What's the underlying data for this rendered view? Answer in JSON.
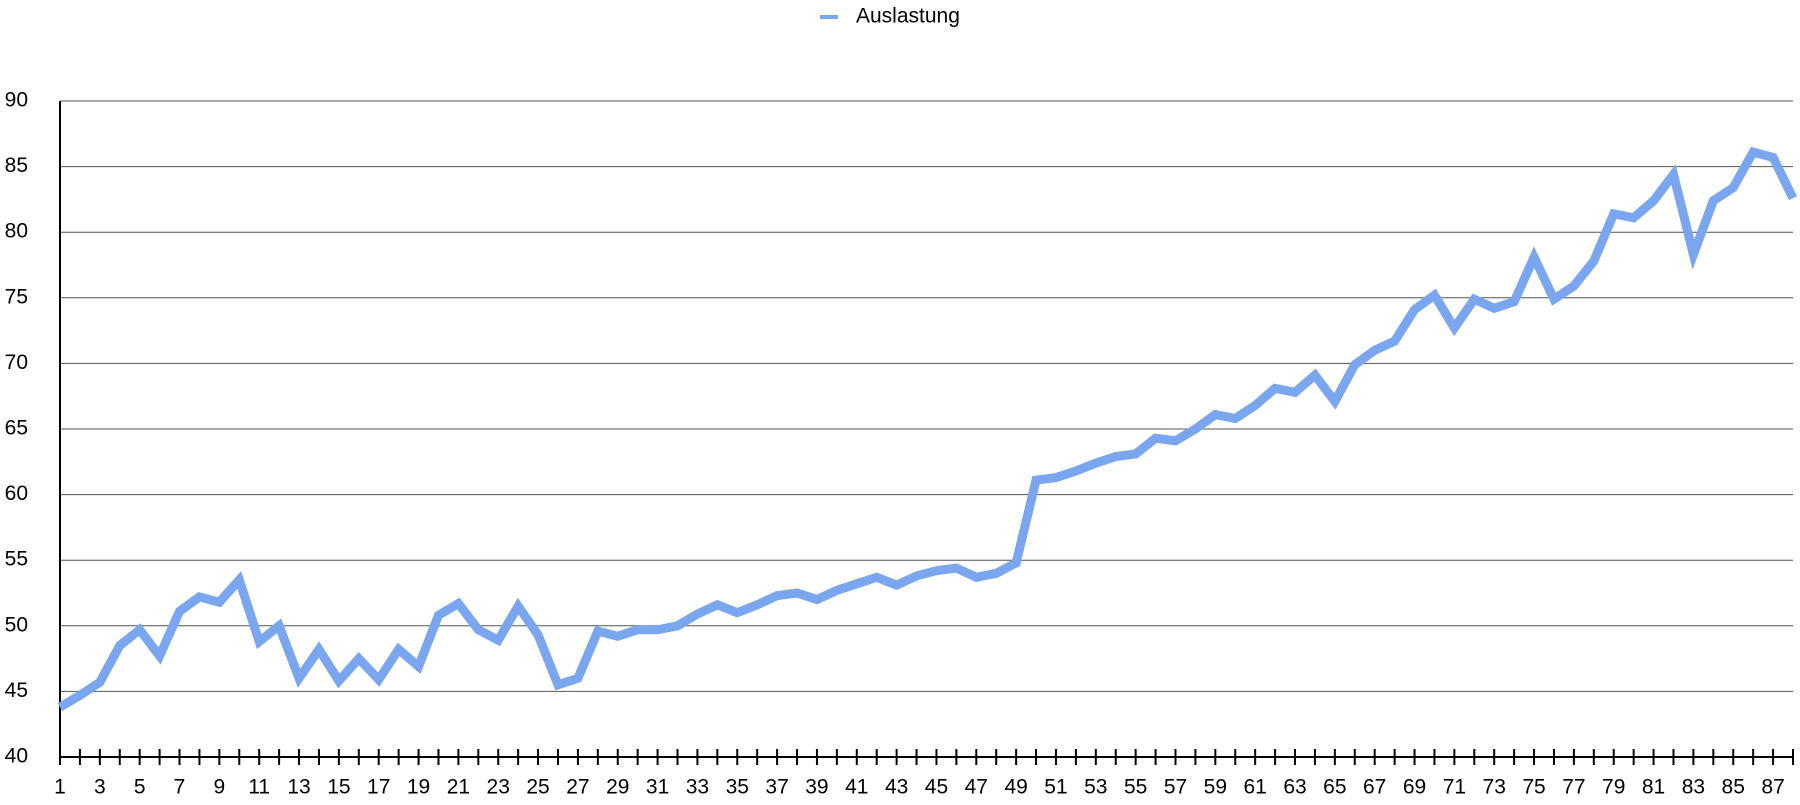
{
  "chart_data": {
    "type": "line",
    "categories": [
      "1",
      null,
      "3",
      null,
      "5",
      null,
      "7",
      null,
      "9",
      null,
      "11",
      null,
      "13",
      null,
      "15",
      null,
      "17",
      null,
      "19",
      null,
      "21",
      null,
      "23",
      null,
      "25",
      null,
      "27",
      null,
      "29",
      null,
      "31",
      null,
      "33",
      null,
      "35",
      null,
      "37",
      null,
      "39",
      null,
      "41",
      null,
      "43",
      null,
      "45",
      null,
      "47",
      null,
      "49",
      null,
      "51",
      null,
      "53",
      null,
      "55",
      null,
      "57",
      null,
      "59",
      null,
      "61",
      null,
      "63",
      null,
      "65",
      null,
      "67",
      null,
      "69",
      null,
      "71",
      null,
      "73",
      null,
      "75",
      null,
      "77",
      null,
      "79",
      null,
      "81",
      null,
      "83",
      null,
      "85",
      null,
      "87",
      null
    ],
    "series": [
      {
        "name": "Auslastung",
        "color": "#79a6ef",
        "values": [
          43.8,
          44.7,
          45.7,
          48.5,
          49.7,
          47.7,
          51.1,
          52.2,
          51.8,
          53.5,
          48.8,
          50.0,
          46.0,
          48.2,
          45.8,
          47.5,
          45.9,
          48.2,
          46.9,
          50.8,
          51.7,
          49.7,
          48.9,
          51.5,
          49.3,
          45.5,
          46.0,
          49.6,
          49.2,
          49.7,
          49.7,
          50.0,
          50.9,
          51.6,
          51.0,
          51.6,
          52.3,
          52.5,
          52.0,
          52.7,
          53.2,
          53.7,
          53.1,
          53.8,
          54.2,
          54.4,
          53.7,
          54.0,
          54.8,
          61.1,
          61.3,
          61.8,
          62.4,
          62.9,
          63.1,
          64.3,
          64.1,
          65.0,
          66.1,
          65.8,
          66.8,
          68.1,
          67.8,
          69.1,
          67.1,
          69.9,
          71.0,
          71.7,
          74.1,
          75.2,
          72.7,
          74.9,
          74.2,
          74.7,
          78.1,
          74.9,
          75.9,
          77.8,
          81.4,
          81.1,
          82.4,
          84.4,
          78.3,
          82.4,
          83.4,
          86.1,
          85.7,
          82.6
        ]
      }
    ],
    "ylim": [
      40,
      90
    ],
    "yticks": [
      40,
      45,
      50,
      55,
      60,
      65,
      70,
      75,
      80,
      85,
      90
    ],
    "grid": true,
    "legend": "top"
  }
}
